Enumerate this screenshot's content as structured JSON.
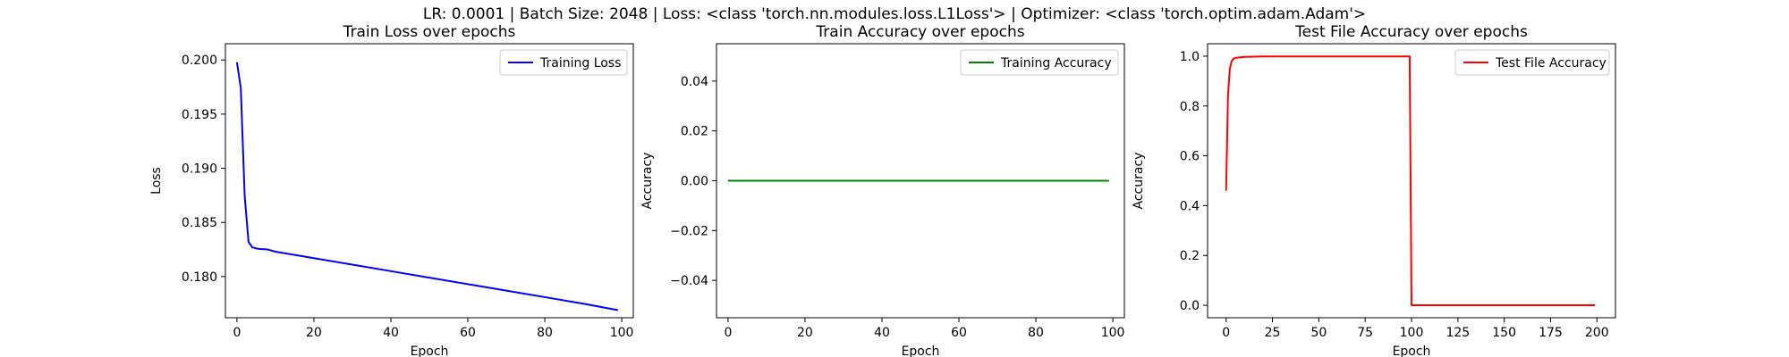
{
  "suptitle": "LR: 0.0001 | Batch Size: 2048 | Loss: <class 'torch.nn.modules.loss.L1Loss'> | Optimizer: <class 'torch.optim.adam.Adam'>",
  "chart_data": [
    {
      "type": "line",
      "title": "Train Loss over epochs",
      "xlabel": "Epoch",
      "ylabel": "Loss",
      "xlim": [
        -3,
        103
      ],
      "ylim": [
        0.1762,
        0.2015
      ],
      "xticks": [
        0,
        20,
        40,
        60,
        80,
        100
      ],
      "xtick_labels": [
        "0",
        "20",
        "40",
        "60",
        "80",
        "100"
      ],
      "yticks": [
        0.18,
        0.185,
        0.19,
        0.195,
        0.2
      ],
      "ytick_labels": [
        "0.180",
        "0.185",
        "0.190",
        "0.195",
        "0.200"
      ],
      "legend_position": "top-right",
      "grid": false,
      "series": [
        {
          "name": "Training Loss",
          "color": "#0000ff",
          "x": [
            0,
            1,
            2,
            3,
            4,
            5,
            6,
            8,
            10,
            20,
            30,
            40,
            50,
            60,
            70,
            80,
            90,
            99
          ],
          "y": [
            0.1998,
            0.1974,
            0.1875,
            0.1832,
            0.1827,
            0.1826,
            0.18255,
            0.1825,
            0.1823,
            0.1817,
            0.1811,
            0.1805,
            0.1799,
            0.1793,
            0.1787,
            0.1781,
            0.1775,
            0.1769
          ]
        }
      ]
    },
    {
      "type": "line",
      "title": "Train Accuracy over epochs",
      "xlabel": "Epoch",
      "ylabel": "Accuracy",
      "xlim": [
        -3,
        103
      ],
      "ylim": [
        -0.055,
        0.055
      ],
      "xticks": [
        0,
        20,
        40,
        60,
        80,
        100
      ],
      "xtick_labels": [
        "0",
        "20",
        "40",
        "60",
        "80",
        "100"
      ],
      "yticks": [
        -0.04,
        -0.02,
        0.0,
        0.02,
        0.04
      ],
      "ytick_labels": [
        "−0.04",
        "−0.02",
        "0.00",
        "0.02",
        "0.04"
      ],
      "legend_position": "top-right",
      "grid": false,
      "series": [
        {
          "name": "Training Accuracy",
          "color": "#008000",
          "x": [
            0,
            99
          ],
          "y": [
            0.0,
            0.0
          ]
        }
      ]
    },
    {
      "type": "line",
      "title": "Test File Accuracy over epochs",
      "xlabel": "Epoch",
      "ylabel": "Accuracy",
      "xlim": [
        -10,
        210
      ],
      "ylim": [
        -0.05,
        1.05
      ],
      "xticks": [
        0,
        25,
        50,
        75,
        100,
        125,
        150,
        175,
        200
      ],
      "xtick_labels": [
        "0",
        "25",
        "50",
        "75",
        "100",
        "125",
        "150",
        "175",
        "200"
      ],
      "yticks": [
        0.0,
        0.2,
        0.4,
        0.6,
        0.8,
        1.0
      ],
      "ytick_labels": [
        "0.0",
        "0.2",
        "0.4",
        "0.6",
        "0.8",
        "1.0"
      ],
      "legend_position": "top-right",
      "grid": false,
      "series": [
        {
          "name": "Test File Accuracy",
          "color": "#ff0000",
          "x": [
            0,
            1,
            2,
            3,
            4,
            5,
            7,
            10,
            15,
            20,
            50,
            99,
            100,
            150,
            199
          ],
          "y": [
            0.46,
            0.84,
            0.95,
            0.98,
            0.99,
            0.993,
            0.995,
            0.997,
            0.998,
            0.999,
            0.999,
            0.999,
            0.0,
            0.0,
            0.0
          ]
        }
      ]
    }
  ]
}
